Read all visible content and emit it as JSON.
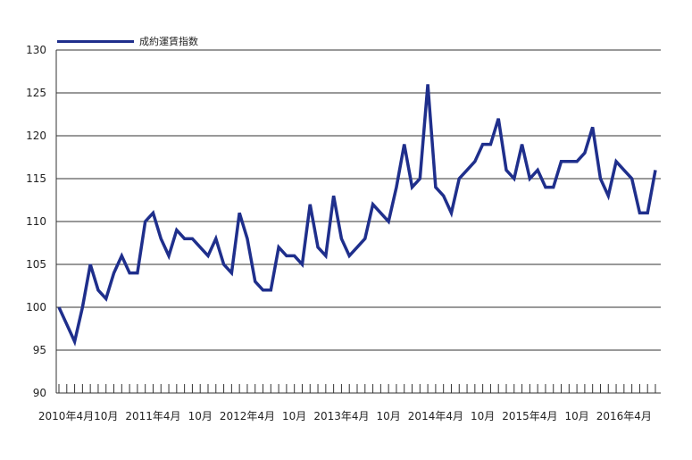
{
  "chart_data": {
    "type": "line",
    "title": "",
    "xlabel": "",
    "ylabel": "",
    "ylim": [
      90,
      130
    ],
    "yticks": [
      90,
      95,
      100,
      105,
      110,
      115,
      120,
      125,
      130
    ],
    "grid": true,
    "legend_position": "top-left",
    "line_color": "#1f2f8c",
    "x_tick_labels": [
      "2010年4月",
      "10月",
      "2011年4月",
      "10月",
      "2012年4月",
      "10月",
      "2013年4月",
      "10月",
      "2014年4月",
      "10月",
      "2015年4月",
      "10月",
      "2016年4月"
    ],
    "series": [
      {
        "name": "成約運賃指数",
        "x": [
          "2010-04",
          "2010-05",
          "2010-06",
          "2010-07",
          "2010-08",
          "2010-09",
          "2010-10",
          "2010-11",
          "2010-12",
          "2011-01",
          "2011-02",
          "2011-03",
          "2011-04",
          "2011-05",
          "2011-06",
          "2011-07",
          "2011-08",
          "2011-09",
          "2011-10",
          "2011-11",
          "2011-12",
          "2012-01",
          "2012-02",
          "2012-03",
          "2012-04",
          "2012-05",
          "2012-06",
          "2012-07",
          "2012-08",
          "2012-09",
          "2012-10",
          "2012-11",
          "2012-12",
          "2013-01",
          "2013-02",
          "2013-03",
          "2013-04",
          "2013-05",
          "2013-06",
          "2013-07",
          "2013-08",
          "2013-09",
          "2013-10",
          "2013-11",
          "2013-12",
          "2014-01",
          "2014-02",
          "2014-03",
          "2014-04",
          "2014-05",
          "2014-06",
          "2014-07",
          "2014-08",
          "2014-09",
          "2014-10",
          "2014-11",
          "2014-12",
          "2015-01",
          "2015-02",
          "2015-03",
          "2015-04",
          "2015-05",
          "2015-06",
          "2015-07",
          "2015-08",
          "2015-09",
          "2015-10",
          "2015-11",
          "2015-12",
          "2016-01",
          "2016-02",
          "2016-03",
          "2016-04",
          "2016-05",
          "2016-06",
          "2016-07",
          "2016-08"
        ],
        "values": [
          100,
          98,
          96,
          100,
          105,
          102,
          101,
          104,
          106,
          104,
          104,
          110,
          111,
          108,
          106,
          109,
          108,
          108,
          107,
          106,
          108,
          105,
          104,
          111,
          108,
          103,
          102,
          102,
          107,
          106,
          106,
          105,
          112,
          107,
          106,
          113,
          108,
          106,
          107,
          108,
          112,
          111,
          110,
          114,
          119,
          114,
          115,
          126,
          114,
          113,
          111,
          115,
          116,
          117,
          119,
          119,
          122,
          116,
          115,
          119,
          115,
          116,
          114,
          114,
          117,
          117,
          117,
          118,
          121,
          115,
          113,
          117,
          116,
          115,
          111,
          111,
          116
        ]
      }
    ]
  }
}
